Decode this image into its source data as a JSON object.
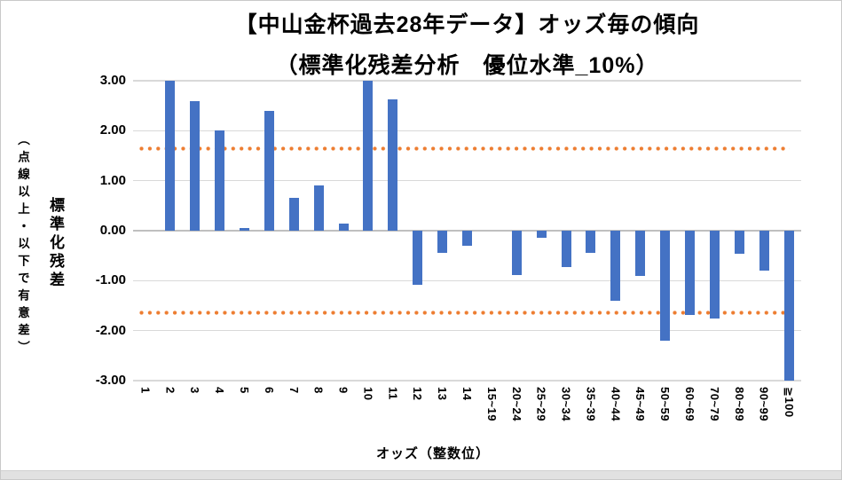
{
  "title": {
    "line1": "【中山金杯過去28年データ】オッズ毎の傾向",
    "line2": "（標準化残差分析　優位水準_10%）"
  },
  "y_axis": {
    "title": "標準化残差",
    "subtitle": "（点線以上・以下で有意差）",
    "ticks": [
      "3.00",
      "2.00",
      "1.00",
      "0.00",
      "-1.00",
      "-2.00",
      "-3.00"
    ],
    "tick_values": [
      3,
      2,
      1,
      0,
      -1,
      -2,
      -3
    ]
  },
  "x_axis": {
    "title": "オッズ（整数位）"
  },
  "colors": {
    "bar": "#4472C4",
    "significance_line": "#ED7D31",
    "gridline": "#D9D9D9",
    "zero_line": "#BFBFBF",
    "text": "#000000"
  },
  "chart_data": {
    "type": "bar",
    "title": "【中山金杯過去28年データ】オッズ毎の傾向（標準化残差分析　優位水準_10%）",
    "xlabel": "オッズ（整数位）",
    "ylabel": "標準化残差（点線以上・以下で有意差）",
    "ylim": [
      -3,
      3
    ],
    "grid": true,
    "legend": false,
    "categories": [
      "1",
      "2",
      "3",
      "4",
      "5",
      "6",
      "7",
      "8",
      "9",
      "10",
      "11",
      "12",
      "13",
      "14",
      "15~19",
      "20~24",
      "25~29",
      "30~34",
      "35~39",
      "40~44",
      "45~49",
      "50~59",
      "60~69",
      "70~79",
      "80~89",
      "90~99",
      "≧100"
    ],
    "values": [
      0,
      3.0,
      2.6,
      2.01,
      0.06,
      2.4,
      0.66,
      0.91,
      0.14,
      3.0,
      2.63,
      -1.08,
      -0.45,
      -0.3,
      0,
      -0.89,
      -0.15,
      -0.72,
      -0.44,
      -1.4,
      -0.9,
      -2.21,
      -1.68,
      -1.75,
      -0.46,
      -0.79,
      -3.0
    ],
    "significance_lines": [
      1.64,
      -1.64
    ]
  }
}
